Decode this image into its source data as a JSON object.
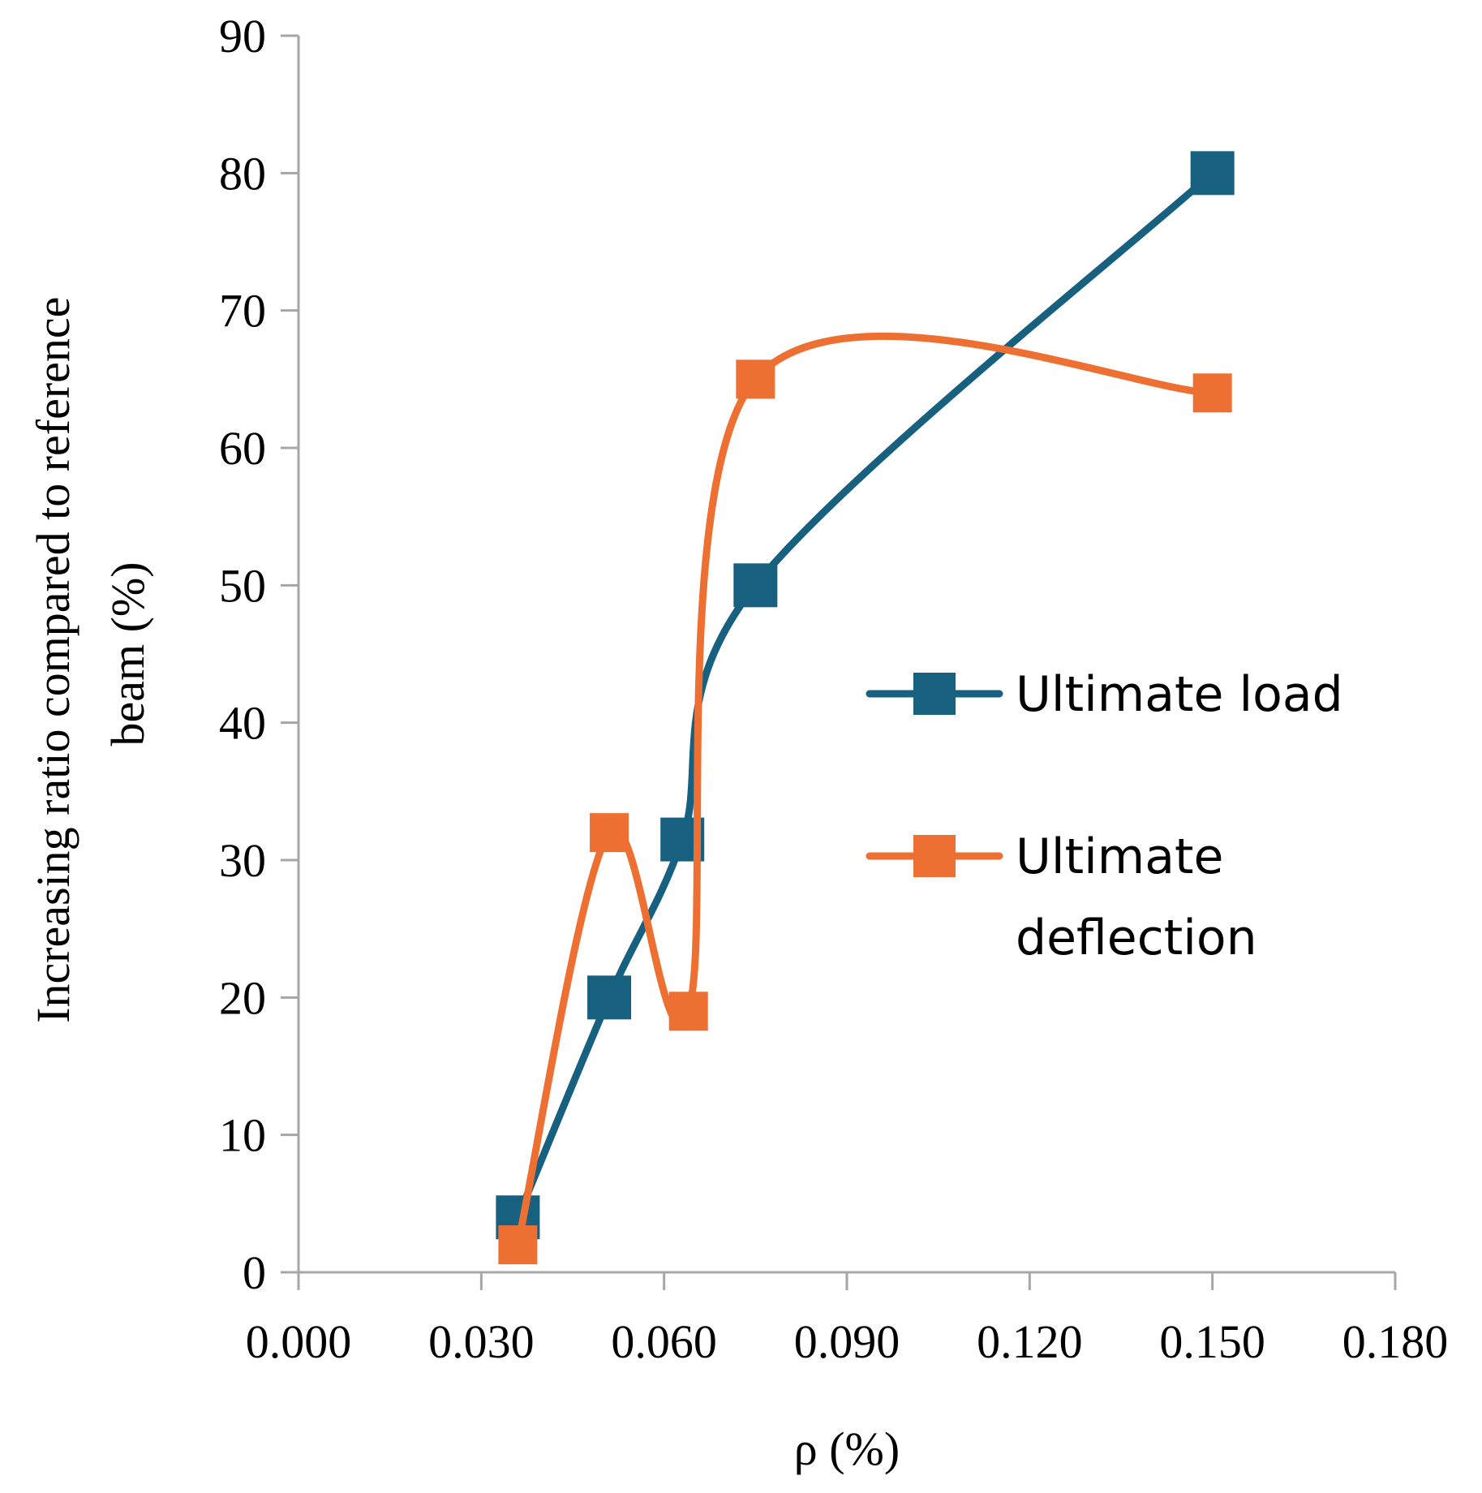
{
  "chart_data": {
    "type": "line",
    "smoothed": true,
    "xlabel": "ρ (%)",
    "ylabel_lines": [
      "Increasing ratio compared to reference",
      "beam (%)"
    ],
    "xlim": [
      0,
      0.18
    ],
    "ylim": [
      0,
      90
    ],
    "x_ticks": [
      "0.000",
      "0.030",
      "0.060",
      "0.090",
      "0.120",
      "0.150",
      "0.180"
    ],
    "y_ticks": [
      "0",
      "10",
      "20",
      "30",
      "40",
      "50",
      "60",
      "70",
      "80",
      "90"
    ],
    "grid": false,
    "legend_position": "right",
    "series": [
      {
        "name": "Ultimate load",
        "color": "#17607f",
        "marker": "square",
        "x": [
          0.036,
          0.051,
          0.063,
          0.075,
          0.15
        ],
        "y": [
          4,
          20,
          31.5,
          50,
          80
        ]
      },
      {
        "name_lines": [
          "Ultimate",
          "deflection"
        ],
        "color": "#ed7032",
        "marker": "square",
        "x": [
          0.036,
          0.051,
          0.064,
          0.075,
          0.15
        ],
        "y": [
          2,
          32,
          19,
          65,
          64
        ]
      }
    ]
  }
}
